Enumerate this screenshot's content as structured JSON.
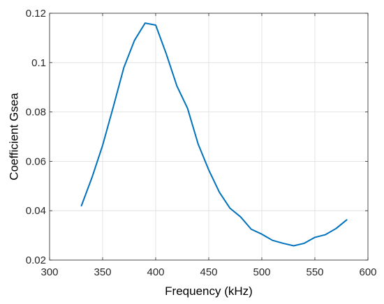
{
  "chart_data": {
    "type": "line",
    "title": "",
    "xlabel": "Frequency (kHz)",
    "ylabel": "Coefficient Gsea",
    "xlim": [
      300,
      600
    ],
    "ylim": [
      0.02,
      0.12
    ],
    "xticks": [
      300,
      350,
      400,
      450,
      500,
      550,
      600
    ],
    "xtick_labels": [
      "300",
      "350",
      "400",
      "450",
      "500",
      "550",
      "600"
    ],
    "yticks": [
      0.02,
      0.04,
      0.06,
      0.08,
      0.1,
      0.12
    ],
    "ytick_labels": [
      "0.02",
      "0.04",
      "0.06",
      "0.08",
      "0.1",
      "0.12"
    ],
    "grid": true,
    "series": [
      {
        "color": "#0072BD",
        "x": [
          330,
          340,
          350,
          360,
          370,
          380,
          390,
          400,
          410,
          420,
          430,
          440,
          450,
          460,
          470,
          480,
          490,
          500,
          510,
          520,
          530,
          540,
          550,
          560,
          570,
          580
        ],
        "y": [
          0.042,
          0.0535,
          0.0665,
          0.082,
          0.098,
          0.109,
          0.116,
          0.1152,
          0.1035,
          0.0905,
          0.0815,
          0.067,
          0.0565,
          0.0475,
          0.041,
          0.0375,
          0.0325,
          0.0305,
          0.028,
          0.0268,
          0.0258,
          0.0268,
          0.0292,
          0.0303,
          0.0328,
          0.0363
        ]
      }
    ]
  }
}
